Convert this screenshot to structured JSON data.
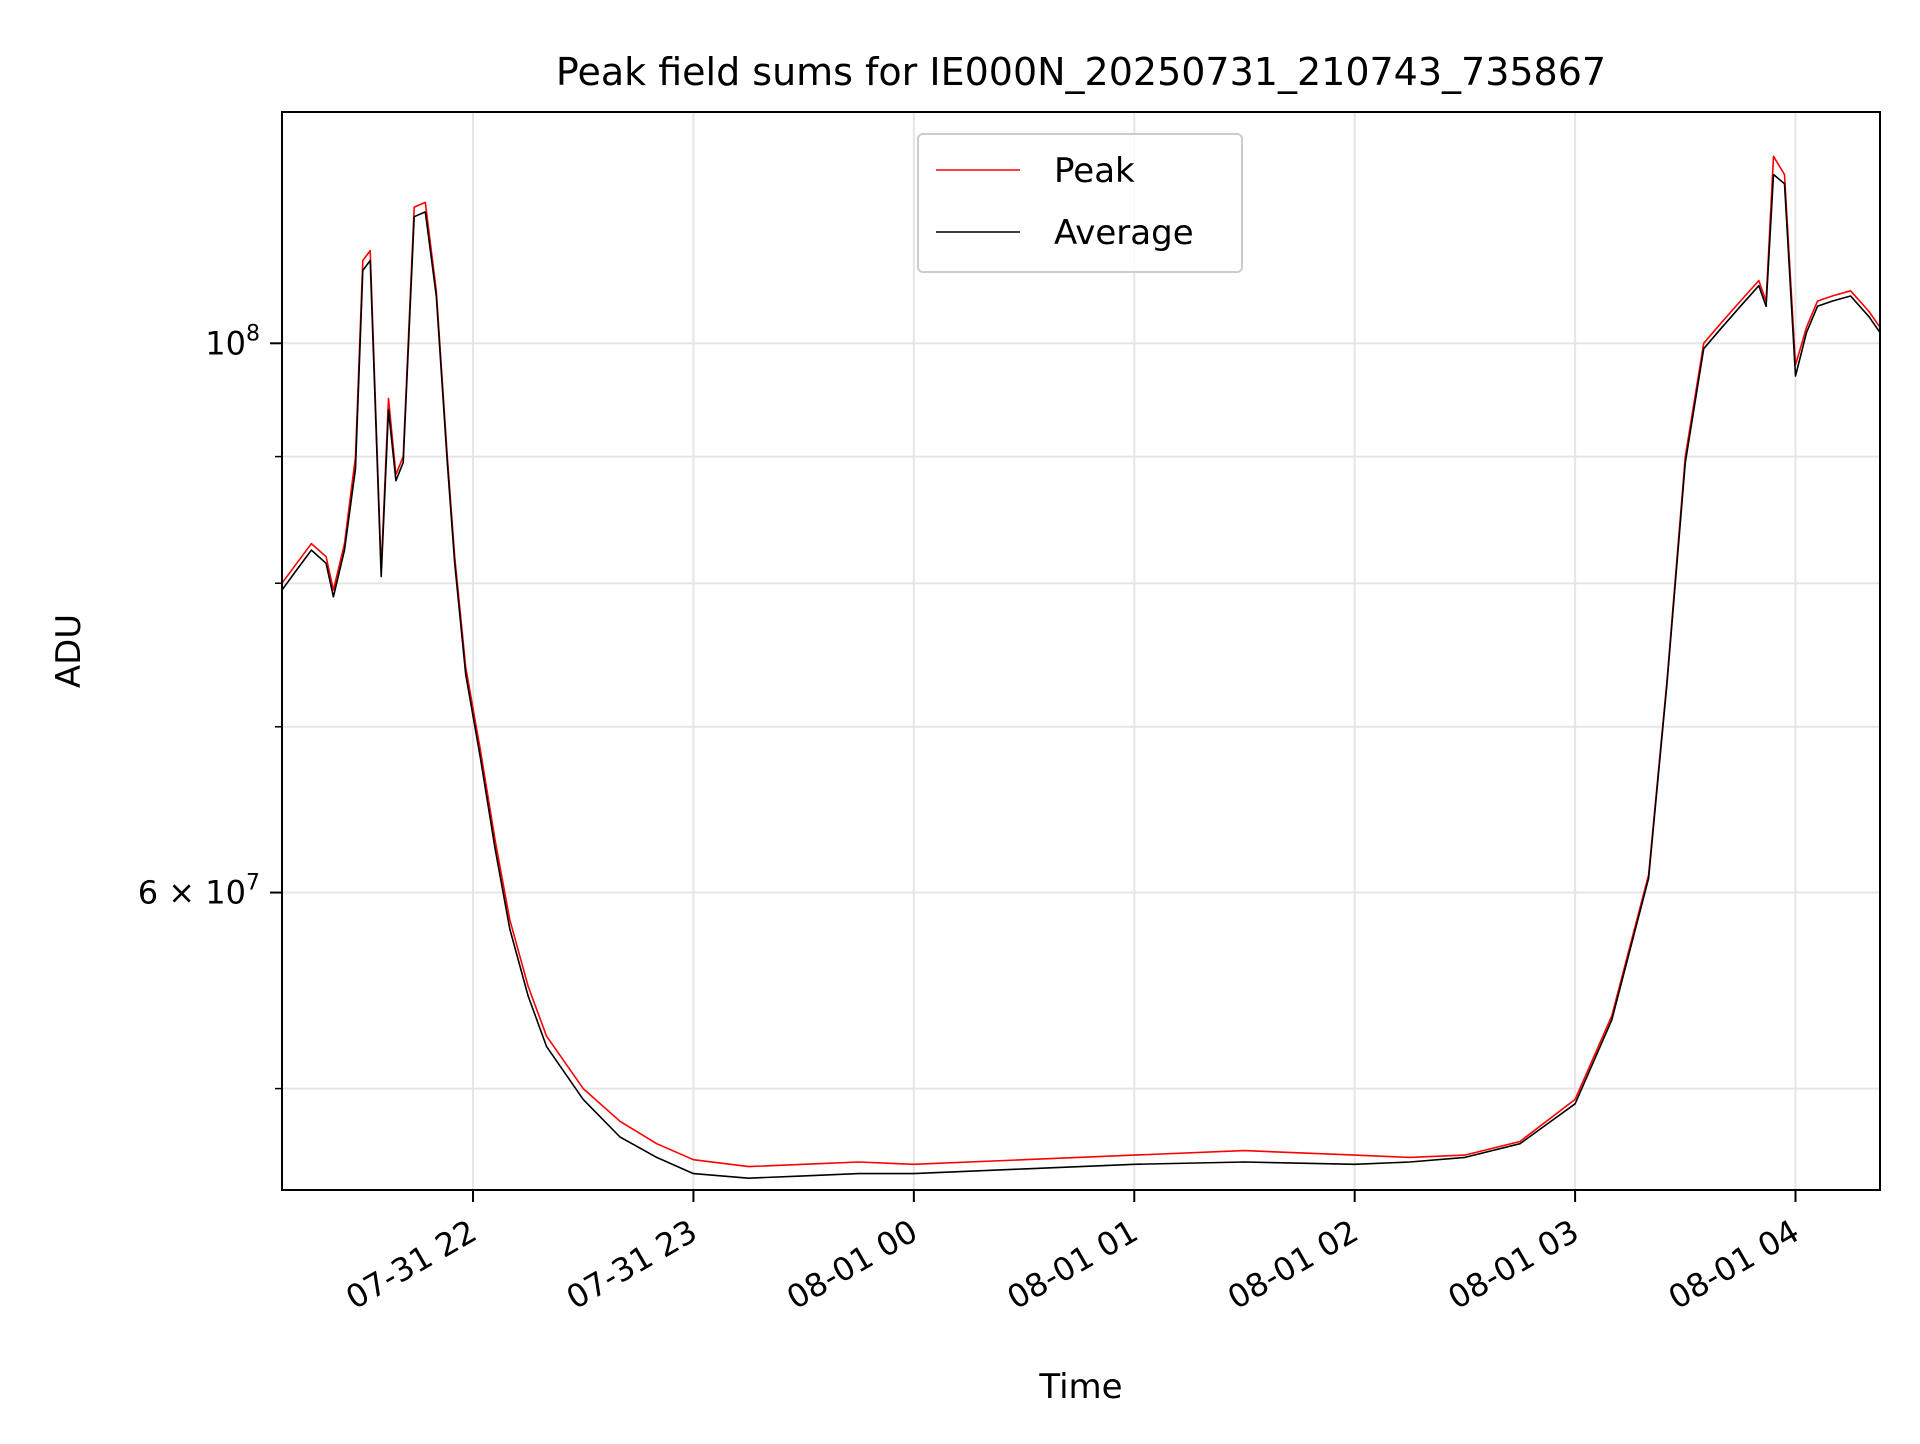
{
  "chart_data": {
    "type": "line",
    "title": "Peak field sums for IE000N_20250731_210743_735867",
    "xlabel": "Time",
    "ylabel": "ADU",
    "x_range": [
      "2025-07-31 21:08",
      "2025-08-01 04:23"
    ],
    "y_scale": "log",
    "ylim": [
      45500000,
      124000000
    ],
    "grid": true,
    "legend": "upper center",
    "x_ticks": [
      "07-31 22",
      "07-31 23",
      "08-01 00",
      "08-01 01",
      "08-01 02",
      "08-01 03",
      "08-01 04"
    ],
    "x_tick_times": [
      "2025-07-31 22:00",
      "2025-07-31 23:00",
      "2025-08-01 00:00",
      "2025-08-01 01:00",
      "2025-08-01 02:00",
      "2025-08-01 03:00",
      "2025-08-01 04:00"
    ],
    "y_major_ticks": [
      {
        "value": 100000000,
        "mant": "",
        "exp": "8",
        "base": "10"
      },
      {
        "value": 60000000,
        "mant": "6 × ",
        "exp": "7",
        "base": "10"
      }
    ],
    "y_minor_ticks": [
      50000000,
      70000000,
      80000000,
      90000000
    ],
    "series": [
      {
        "name": "Peak",
        "color": "#ff0000",
        "x": [
          "2025-07-31 21:08",
          "2025-07-31 21:12",
          "2025-07-31 21:16",
          "2025-07-31 21:20",
          "2025-07-31 21:22",
          "2025-07-31 21:25",
          "2025-07-31 21:28",
          "2025-07-31 21:30",
          "2025-07-31 21:32",
          "2025-07-31 21:35",
          "2025-07-31 21:37",
          "2025-07-31 21:39",
          "2025-07-31 21:41",
          "2025-07-31 21:44",
          "2025-07-31 21:47",
          "2025-07-31 21:50",
          "2025-07-31 21:53",
          "2025-07-31 21:55",
          "2025-07-31 21:58",
          "2025-07-31 22:02",
          "2025-07-31 22:06",
          "2025-07-31 22:10",
          "2025-07-31 22:15",
          "2025-07-31 22:20",
          "2025-07-31 22:30",
          "2025-07-31 22:40",
          "2025-07-31 22:50",
          "2025-07-31 23:00",
          "2025-07-31 23:15",
          "2025-07-31 23:30",
          "2025-07-31 23:45",
          "2025-08-01 00:00",
          "2025-08-01 00:30",
          "2025-08-01 01:00",
          "2025-08-01 01:30",
          "2025-08-01 02:00",
          "2025-08-01 02:15",
          "2025-08-01 02:30",
          "2025-08-01 02:45",
          "2025-08-01 03:00",
          "2025-08-01 03:10",
          "2025-08-01 03:20",
          "2025-08-01 03:25",
          "2025-08-01 03:30",
          "2025-08-01 03:35",
          "2025-08-01 03:40",
          "2025-08-01 03:45",
          "2025-08-01 03:50",
          "2025-08-01 03:52",
          "2025-08-01 03:54",
          "2025-08-01 03:57",
          "2025-08-01 04:00",
          "2025-08-01 04:03",
          "2025-08-01 04:06",
          "2025-08-01 04:10",
          "2025-08-01 04:15",
          "2025-08-01 04:20",
          "2025-08-01 04:23"
        ],
        "y": [
          80000000,
          81500000,
          83000000,
          82000000,
          79500000,
          83000000,
          90000000,
          108000000,
          109000000,
          81000000,
          95000000,
          88500000,
          90000000,
          113500000,
          114000000,
          105000000,
          90000000,
          82000000,
          74000000,
          68500000,
          63000000,
          58500000,
          55000000,
          52500000,
          50000000,
          48500000,
          47500000,
          46800000,
          46500000,
          46600000,
          46700000,
          46600000,
          46800000,
          47000000,
          47200000,
          47000000,
          46900000,
          47000000,
          47600000,
          49500000,
          53500000,
          61000000,
          73000000,
          90000000,
          100000000,
          102000000,
          104000000,
          106000000,
          104000000,
          119000000,
          117000000,
          98000000,
          101500000,
          104000000,
          104500000,
          105000000,
          103000000,
          101500000
        ]
      },
      {
        "name": "Average",
        "color": "#000000",
        "x": [
          "2025-07-31 21:08",
          "2025-07-31 21:12",
          "2025-07-31 21:16",
          "2025-07-31 21:20",
          "2025-07-31 21:22",
          "2025-07-31 21:25",
          "2025-07-31 21:28",
          "2025-07-31 21:30",
          "2025-07-31 21:32",
          "2025-07-31 21:35",
          "2025-07-31 21:37",
          "2025-07-31 21:39",
          "2025-07-31 21:41",
          "2025-07-31 21:44",
          "2025-07-31 21:47",
          "2025-07-31 21:50",
          "2025-07-31 21:53",
          "2025-07-31 21:55",
          "2025-07-31 21:58",
          "2025-07-31 22:02",
          "2025-07-31 22:06",
          "2025-07-31 22:10",
          "2025-07-31 22:15",
          "2025-07-31 22:20",
          "2025-07-31 22:30",
          "2025-07-31 22:40",
          "2025-07-31 22:50",
          "2025-07-31 23:00",
          "2025-07-31 23:15",
          "2025-07-31 23:30",
          "2025-07-31 23:45",
          "2025-08-01 00:00",
          "2025-08-01 00:30",
          "2025-08-01 01:00",
          "2025-08-01 01:30",
          "2025-08-01 02:00",
          "2025-08-01 02:15",
          "2025-08-01 02:30",
          "2025-08-01 02:45",
          "2025-08-01 03:00",
          "2025-08-01 03:10",
          "2025-08-01 03:20",
          "2025-08-01 03:25",
          "2025-08-01 03:30",
          "2025-08-01 03:35",
          "2025-08-01 03:40",
          "2025-08-01 03:45",
          "2025-08-01 03:50",
          "2025-08-01 03:52",
          "2025-08-01 03:54",
          "2025-08-01 03:57",
          "2025-08-01 04:00",
          "2025-08-01 04:03",
          "2025-08-01 04:06",
          "2025-08-01 04:10",
          "2025-08-01 04:15",
          "2025-08-01 04:20",
          "2025-08-01 04:23"
        ],
        "y": [
          79500000,
          81000000,
          82500000,
          81500000,
          79000000,
          82500000,
          89000000,
          107000000,
          108000000,
          80500000,
          94000000,
          88000000,
          89500000,
          112500000,
          113000000,
          104500000,
          89500000,
          81500000,
          73500000,
          68000000,
          62500000,
          58000000,
          54500000,
          52000000,
          49500000,
          47800000,
          46900000,
          46200000,
          46000000,
          46100000,
          46200000,
          46200000,
          46400000,
          46600000,
          46700000,
          46600000,
          46700000,
          46900000,
          47500000,
          49300000,
          53300000,
          60800000,
          72800000,
          89500000,
          99500000,
          101500000,
          103500000,
          105500000,
          103500000,
          117000000,
          116000000,
          97000000,
          101000000,
          103500000,
          104000000,
          104500000,
          102500000,
          101000000
        ]
      }
    ]
  }
}
